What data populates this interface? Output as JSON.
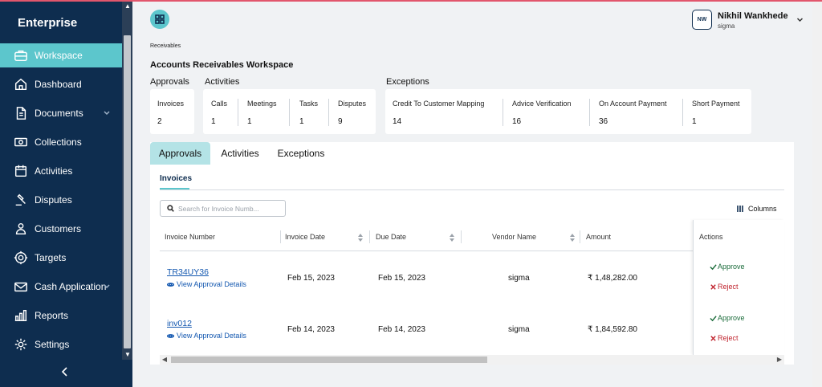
{
  "sidebar": {
    "brand": "Enterprise",
    "items": [
      {
        "label": "Workspace",
        "icon": "briefcase-icon",
        "active": true
      },
      {
        "label": "Dashboard",
        "icon": "home-icon"
      },
      {
        "label": "Documents",
        "icon": "document-icon",
        "has_submenu": true
      },
      {
        "label": "Collections",
        "icon": "cash-icon"
      },
      {
        "label": "Activities",
        "icon": "calendar-icon"
      },
      {
        "label": "Disputes",
        "icon": "gavel-icon"
      },
      {
        "label": "Customers",
        "icon": "customers-icon"
      },
      {
        "label": "Targets",
        "icon": "target-icon"
      },
      {
        "label": "Cash Application",
        "icon": "mail-money-icon",
        "has_submenu": true
      },
      {
        "label": "Reports",
        "icon": "bar-chart-icon"
      },
      {
        "label": "Settings",
        "icon": "gear-icon"
      }
    ]
  },
  "header": {
    "user": {
      "initials": "NW",
      "name": "Nikhil Wankhede",
      "org": "sigma"
    }
  },
  "breadcrumb": "Receivables",
  "page_title": "Accounts Receivables Workspace",
  "summary": {
    "approvals": {
      "label": "Approvals",
      "metrics": [
        {
          "label": "Invoices",
          "value": "2"
        }
      ]
    },
    "activities": {
      "label": "Activities",
      "metrics": [
        {
          "label": "Calls",
          "value": "1"
        },
        {
          "label": "Meetings",
          "value": "1"
        },
        {
          "label": "Tasks",
          "value": "1"
        },
        {
          "label": "Disputes",
          "value": "9"
        }
      ]
    },
    "exceptions": {
      "label": "Exceptions",
      "metrics": [
        {
          "label": "Credit To Customer Mapping",
          "value": "14"
        },
        {
          "label": "Advice Verification",
          "value": "16"
        },
        {
          "label": "On Account Payment",
          "value": "36"
        },
        {
          "label": "Short Payment",
          "value": "1"
        }
      ]
    }
  },
  "tabs": [
    {
      "label": "Approvals",
      "active": true
    },
    {
      "label": "Activities"
    },
    {
      "label": "Exceptions"
    }
  ],
  "subtab": "Invoices",
  "search": {
    "placeholder": "Search for Invoice Numb..."
  },
  "columns_label": "Columns",
  "table": {
    "headers": [
      "Invoice Number",
      "Invoice Date",
      "Due Date",
      "Vendor Name",
      "Amount",
      "Actions"
    ],
    "rows": [
      {
        "invoice_number": "TR34UY36",
        "view_label": "View Approval Details",
        "invoice_date": "Feb 15, 2023",
        "due_date": "Feb 15, 2023",
        "vendor": "sigma",
        "amount": "₹ 1,48,282.00",
        "approve": "Approve",
        "reject": "Reject"
      },
      {
        "invoice_number": "inv012",
        "view_label": "View Approval Details",
        "invoice_date": "Feb 14, 2023",
        "due_date": "Feb 14, 2023",
        "vendor": "sigma",
        "amount": "₹ 1,84,592.80",
        "approve": "Approve",
        "reject": "Reject"
      }
    ]
  },
  "colors": {
    "sidebar_bg": "#0e2d4f",
    "accent": "#5cc6cc",
    "link": "#1458b0",
    "approve": "#1a6b3a",
    "reject": "#c0242e"
  }
}
